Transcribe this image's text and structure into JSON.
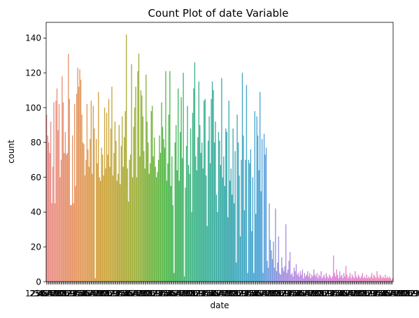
{
  "chart_data": {
    "type": "bar",
    "title": "Count Plot of date Variable",
    "xlabel": "date",
    "ylabel": "count",
    "ylim": [
      0,
      149
    ],
    "yticks": [
      0,
      20,
      40,
      60,
      80,
      100,
      120,
      140
    ],
    "x_tick_labels_legible": false,
    "legend": "none",
    "grid": false,
    "segments": [
      {
        "hue_start": "#e98a8a",
        "hue_end": "#e6955f",
        "values": [
          96,
          84,
          80,
          74,
          92,
          45,
          66,
          103,
          45,
          104,
          111,
          87,
          102,
          60,
          70,
          118,
          103,
          74,
          86,
          73,
          74,
          131,
          105,
          44,
          44,
          84,
          45,
          102,
          55
        ]
      },
      {
        "hue_start": "#e6955f",
        "hue_end": "#cda43a",
        "values": [
          108,
          123,
          112,
          122,
          116,
          96,
          80,
          79,
          61,
          70,
          102,
          76,
          66,
          82,
          104,
          62,
          101,
          88,
          2,
          82,
          68,
          109,
          60,
          58,
          77,
          73,
          61,
          100
        ]
      },
      {
        "hue_start": "#cda43a",
        "hue_end": "#9cb13a",
        "values": [
          65,
          97,
          73,
          105,
          66,
          88,
          112,
          61,
          74,
          92,
          81,
          58,
          62,
          90,
          56,
          78,
          95,
          66,
          83,
          98,
          142,
          65,
          46,
          70,
          73,
          125,
          60,
          89,
          100,
          112
        ]
      },
      {
        "hue_start": "#9cb13a",
        "hue_end": "#4cb848",
        "values": [
          60,
          121,
          131,
          72,
          110,
          107,
          95,
          75,
          65,
          119,
          92,
          80,
          62,
          68,
          98,
          101,
          72,
          83,
          66,
          60,
          63,
          70,
          84,
          74,
          103,
          89,
          82,
          77,
          121,
          58
        ]
      },
      {
        "hue_start": "#4cb848",
        "hue_end": "#3db58f",
        "values": [
          68,
          96,
          121,
          55,
          72,
          44,
          5,
          80,
          90,
          64,
          111,
          58,
          86,
          106,
          71,
          120,
          3,
          54,
          78,
          101,
          67,
          62,
          88,
          40,
          97,
          111,
          126,
          72,
          64
        ]
      },
      {
        "hue_start": "#3db58f",
        "hue_end": "#3aa9ae",
        "values": [
          83,
          115,
          90,
          74,
          80,
          65,
          104,
          105,
          61,
          32,
          81,
          95,
          68,
          105,
          115,
          110,
          80,
          92,
          50,
          40,
          86,
          81,
          67,
          117,
          60,
          72,
          55,
          88,
          86,
          37
        ]
      },
      {
        "hue_start": "#3aa9ae",
        "hue_end": "#4ba5d8",
        "values": [
          104,
          58,
          65,
          50,
          88,
          45,
          75,
          11,
          96,
          80,
          61,
          26,
          70,
          120,
          84,
          41,
          70,
          113,
          5,
          70,
          68,
          76,
          29,
          60,
          5,
          98,
          39,
          95,
          84,
          64
        ]
      },
      {
        "hue_start": "#4ba5d8",
        "hue_end": "#a98ee3",
        "values": [
          109,
          52,
          82,
          5,
          85,
          73,
          77,
          12,
          8,
          45,
          24,
          18,
          13,
          23,
          8,
          42,
          6,
          11,
          26,
          5,
          4,
          14,
          8,
          6
        ]
      },
      {
        "hue_start": "#a98ee3",
        "hue_end": "#dc82d8",
        "values": [
          9,
          33,
          5,
          7,
          12,
          17,
          4,
          5,
          3,
          8,
          6,
          10,
          4,
          5,
          3,
          6,
          4,
          7,
          2,
          5,
          3,
          4,
          6,
          3,
          5,
          2,
          4,
          3,
          7,
          4,
          3,
          5,
          2,
          4,
          3,
          6,
          2,
          3,
          4,
          2,
          5,
          3,
          2,
          4,
          3,
          2,
          3,
          15
        ]
      },
      {
        "hue_start": "#dc82d8",
        "hue_end": "#ee88b1",
        "values": [
          5,
          3,
          7,
          4,
          2,
          6,
          3,
          4,
          2,
          5,
          3,
          9,
          4,
          2,
          3,
          5,
          2,
          4,
          3,
          2,
          6,
          3,
          2,
          4,
          3,
          2,
          3,
          5,
          2,
          3,
          2,
          4,
          2,
          3,
          2,
          3,
          5,
          2,
          4,
          3,
          2,
          6,
          3,
          2,
          4,
          3,
          2,
          3,
          2,
          4,
          2,
          3,
          2,
          3,
          2,
          1,
          2
        ]
      }
    ]
  }
}
